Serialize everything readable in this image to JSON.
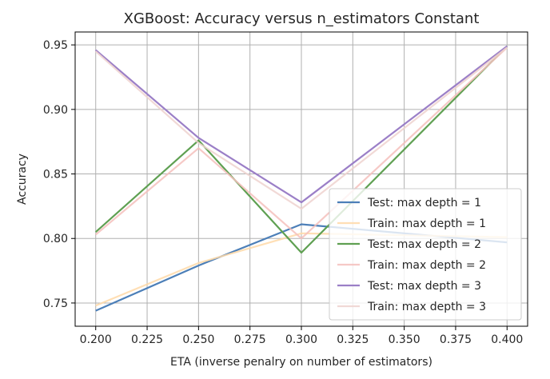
{
  "chart_data": {
    "type": "line",
    "title": "XGBoost: Accuracy versus n_estimators Constant",
    "xlabel": "ETA (inverse penalry on number of estimators)",
    "ylabel": "Accuracy",
    "xlim": [
      0.19,
      0.41
    ],
    "ylim": [
      0.732,
      0.96
    ],
    "x": [
      0.2,
      0.25,
      0.3,
      0.4
    ],
    "xticks": [
      "0.200",
      "0.225",
      "0.250",
      "0.275",
      "0.300",
      "0.325",
      "0.350",
      "0.375",
      "0.400"
    ],
    "yticks": [
      "0.75",
      "0.80",
      "0.85",
      "0.90",
      "0.95"
    ],
    "grid": true,
    "legend_position": "lower-right",
    "series": [
      {
        "name": "Test: max depth = 1",
        "color": "#4c7fb8",
        "opacity": 1,
        "values": [
          0.744,
          0.779,
          0.811,
          0.797
        ]
      },
      {
        "name": "Train: max depth = 1",
        "color": "#ffd9a8",
        "opacity": 0.85,
        "values": [
          0.748,
          0.781,
          0.804,
          0.801
        ]
      },
      {
        "name": "Test: max depth = 2",
        "color": "#5fa052",
        "opacity": 1,
        "values": [
          0.805,
          0.876,
          0.789,
          0.949
        ]
      },
      {
        "name": "Train: max depth = 2",
        "color": "#f5c0bc",
        "opacity": 0.85,
        "values": [
          0.803,
          0.87,
          0.8,
          0.948
        ]
      },
      {
        "name": "Test: max depth = 3",
        "color": "#9b7fc7",
        "opacity": 1,
        "values": [
          0.946,
          0.878,
          0.828,
          0.949
        ]
      },
      {
        "name": "Train: max depth = 3",
        "color": "#eed2cf",
        "opacity": 0.85,
        "values": [
          0.945,
          0.874,
          0.823,
          0.948
        ]
      }
    ]
  }
}
